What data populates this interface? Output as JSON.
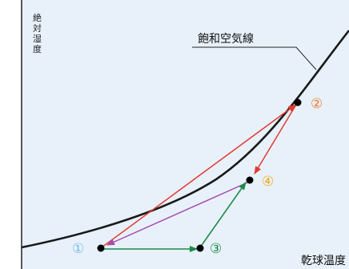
{
  "colors": {
    "background": "#e8f1fa",
    "axis": "#222222",
    "curve": "#1a1a1a",
    "point": "#000000",
    "red_arrow": "#e03a32",
    "purple_arrow": "#a64ab0",
    "green_arrow": "#1d8a47",
    "label_1": "#79b8e6",
    "label_2": "#ef7a2a",
    "label_3": "#1d8a47",
    "label_4": "#f1a818"
  },
  "diagram": {
    "y_axis_label_chars": [
      "絶",
      "対",
      "湿",
      "度"
    ],
    "curve_label": "飽和空気線",
    "x_axis_label": "乾球温度",
    "point_labels": {
      "p1": "①",
      "p2": "②",
      "p3": "③",
      "p4": "④"
    }
  }
}
